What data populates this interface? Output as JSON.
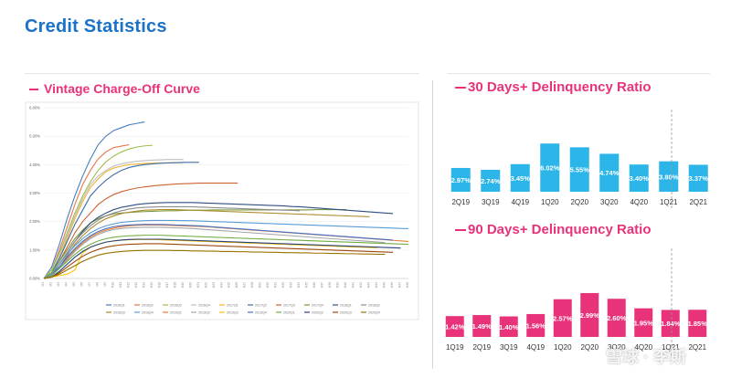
{
  "page": {
    "title": "Credit Statistics"
  },
  "sections": {
    "vintage": "Vintage Charge-Off Curve",
    "dq30": "30 Days+ Delinquency Ratio",
    "dq90": "90 Days+ Delinquency Ratio"
  },
  "watermark": "雪球 · 李斯",
  "colors": {
    "title": "#1a73c8",
    "accent": "#e8327a",
    "bar30": "#2bb5e8",
    "bar90": "#e8327a"
  },
  "chart_data": [
    {
      "id": "vintage",
      "type": "line",
      "title": "Vintage Charge-Off Curve",
      "yticks": [
        "0.00%",
        "1.00%",
        "2.00%",
        "3.00%",
        "4.00%",
        "5.00%",
        "6.00%"
      ],
      "ylim": [
        0,
        6
      ],
      "num_periods": 48,
      "series": [
        {
          "name": "2016Q1",
          "color": "#4a7fc1",
          "values": [
            0,
            0.4,
            1.2,
            2.1,
            2.9,
            3.6,
            4.2,
            4.7,
            5.0,
            5.2,
            5.3,
            5.4,
            5.45,
            5.5
          ]
        },
        {
          "name": "2016Q2",
          "color": "#e8734a",
          "values": [
            0,
            0.3,
            1.0,
            1.8,
            2.6,
            3.3,
            3.8,
            4.2,
            4.45,
            4.6,
            4.65,
            4.7
          ]
        },
        {
          "name": "2016Q3",
          "color": "#9fbf4f",
          "values": [
            0,
            0.3,
            0.9,
            1.6,
            2.3,
            2.9,
            3.4,
            3.8,
            4.1,
            4.3,
            4.45,
            4.55,
            4.62,
            4.66,
            4.68
          ]
        },
        {
          "name": "2016Q4",
          "color": "#bfbfbf",
          "values": [
            0,
            0.2,
            0.8,
            1.5,
            2.2,
            2.8,
            3.3,
            3.6,
            3.8,
            3.95,
            4.03,
            4.08,
            4.12,
            4.14,
            4.16,
            4.17,
            4.18,
            4.18,
            4.18
          ]
        },
        {
          "name": "2017Q1",
          "color": "#f2b233",
          "values": [
            0,
            0.2,
            0.7,
            1.4,
            2.1,
            2.7,
            3.2,
            3.5,
            3.75,
            3.88,
            3.95,
            4.0,
            4.02,
            4.04,
            4.05,
            4.06,
            4.06,
            4.07,
            4.07
          ]
        },
        {
          "name": "2017Q2",
          "color": "#3d6fa8",
          "values": [
            0,
            0.2,
            0.7,
            1.3,
            1.9,
            2.4,
            2.9,
            3.2,
            3.45,
            3.65,
            3.8,
            3.9,
            3.96,
            4.0,
            4.03,
            4.05,
            4.06,
            4.07,
            4.08,
            4.08,
            4.08
          ]
        },
        {
          "name": "2017Q3",
          "color": "#c9622e",
          "values": [
            0,
            0.2,
            0.6,
            1.1,
            1.6,
            2.0,
            2.3,
            2.6,
            2.8,
            2.95,
            3.05,
            3.12,
            3.18,
            3.22,
            3.25,
            3.28,
            3.3,
            3.32,
            3.33,
            3.34,
            3.35,
            3.35,
            3.35,
            3.35,
            3.35,
            3.35
          ]
        },
        {
          "name": "2017Q4",
          "color": "#7a9a3c",
          "values": [
            0,
            0.2,
            0.6,
            1.0,
            1.4,
            1.7,
            1.95,
            2.1,
            2.2,
            2.27,
            2.3,
            2.32,
            2.34,
            2.35,
            2.36,
            2.37,
            2.38,
            2.38,
            2.39,
            2.4,
            2.4,
            2.4,
            2.41,
            2.41,
            2.41,
            2.41,
            2.41,
            2.41,
            2.41,
            2.41,
            2.41,
            2.41,
            2.41,
            2.41,
            2.41,
            2.42,
            2.42,
            2.42,
            2.42,
            2.42
          ]
        },
        {
          "name": "2018Q1",
          "color": "#2e4e7e",
          "values": [
            0,
            0.1,
            0.5,
            0.9,
            1.3,
            1.65,
            1.95,
            2.15,
            2.3,
            2.42,
            2.5,
            2.55,
            2.6,
            2.63,
            2.65,
            2.66,
            2.67,
            2.67,
            2.67,
            2.67,
            2.66,
            2.65,
            2.64,
            2.63,
            2.62,
            2.61,
            2.6,
            2.59,
            2.58,
            2.57,
            2.56,
            2.55,
            2.53,
            2.52,
            2.5,
            2.48,
            2.46,
            2.44,
            2.42,
            2.4,
            2.38,
            2.36,
            2.34,
            2.32,
            2.3,
            2.28
          ]
        },
        {
          "name": "2018Q2",
          "color": "#8c8c8c",
          "values": [
            0,
            0.15,
            0.5,
            0.9,
            1.3,
            1.6,
            1.85,
            2.05,
            2.2,
            2.3,
            2.38,
            2.44,
            2.48,
            2.5,
            2.51,
            2.52,
            2.52,
            2.52,
            2.52,
            2.52,
            2.51,
            2.5,
            2.49,
            2.48,
            2.47,
            2.46,
            2.45,
            2.44,
            2.43,
            2.42,
            2.41,
            2.4,
            2.39,
            2.38
          ]
        },
        {
          "name": "2018Q3",
          "color": "#b08a2a",
          "values": [
            0,
            0.1,
            0.4,
            0.8,
            1.2,
            1.5,
            1.75,
            1.95,
            2.1,
            2.2,
            2.28,
            2.33,
            2.37,
            2.4,
            2.41,
            2.42,
            2.42,
            2.42,
            2.41,
            2.4,
            2.39,
            2.38,
            2.37,
            2.36,
            2.35,
            2.34,
            2.33,
            2.32,
            2.31,
            2.3,
            2.29,
            2.28,
            2.27,
            2.26,
            2.25,
            2.24,
            2.23,
            2.22,
            2.21,
            2.2,
            2.19,
            2.18,
            2.17
          ]
        },
        {
          "name": "2018Q4",
          "color": "#5a9bd5",
          "values": [
            0,
            0.15,
            0.5,
            0.85,
            1.15,
            1.4,
            1.6,
            1.75,
            1.85,
            1.92,
            1.97,
            2.0,
            2.02,
            2.03,
            2.04,
            2.04,
            2.04,
            2.04,
            2.03,
            2.03,
            2.02,
            2.01,
            2.0,
            1.99,
            1.98,
            1.97,
            1.96,
            1.95,
            1.94,
            1.93,
            1.92,
            1.91,
            1.9,
            1.89,
            1.88,
            1.87,
            1.86,
            1.85,
            1.84,
            1.83,
            1.82,
            1.81,
            1.8,
            1.79,
            1.78,
            1.77,
            1.76,
            1.75
          ]
        },
        {
          "name": "2019Q1",
          "color": "#ed7d31",
          "values": [
            0,
            0.1,
            0.4,
            0.7,
            1.0,
            1.25,
            1.45,
            1.6,
            1.7,
            1.77,
            1.82,
            1.85,
            1.87,
            1.88,
            1.88,
            1.88,
            1.87,
            1.86,
            1.85,
            1.84,
            1.83,
            1.82,
            1.8,
            1.78,
            1.76,
            1.74,
            1.72,
            1.7,
            1.68,
            1.66,
            1.64,
            1.62,
            1.6,
            1.58,
            1.56,
            1.54,
            1.52,
            1.5,
            1.48,
            1.46,
            1.44,
            1.42,
            1.4,
            1.38,
            1.36,
            1.34,
            1.32,
            1.3
          ]
        },
        {
          "name": "2019Q2",
          "color": "#a5a5a5",
          "values": [
            0,
            0.1,
            0.35,
            0.65,
            0.95,
            1.2,
            1.4,
            1.55,
            1.65,
            1.72,
            1.76,
            1.78,
            1.79,
            1.8,
            1.8,
            1.8,
            1.79,
            1.78,
            1.77,
            1.76,
            1.74,
            1.72,
            1.7,
            1.68,
            1.66,
            1.64,
            1.62,
            1.6,
            1.58,
            1.56,
            1.54,
            1.52,
            1.5,
            1.48,
            1.46,
            1.44,
            1.42,
            1.4,
            1.38,
            1.36,
            1.34,
            1.32,
            1.3,
            1.28,
            1.26
          ]
        },
        {
          "name": "2019Q3",
          "color": "#ffc000",
          "values": [
            0,
            0.05,
            0.1,
            0.15,
            0.3,
            0.9,
            1.1,
            1.2,
            1.28,
            1.32,
            1.35,
            1.36,
            1.37,
            1.37,
            1.37,
            1.36,
            1.35,
            1.34,
            1.33,
            1.32,
            1.31,
            1.3,
            1.29,
            1.28,
            1.27,
            1.26,
            1.25,
            1.24,
            1.23,
            1.22,
            1.21,
            1.2,
            1.19,
            1.18,
            1.17,
            1.16,
            1.15,
            1.14,
            1.13,
            1.12,
            1.11,
            1.1,
            1.09,
            1.08
          ]
        },
        {
          "name": "2019Q4",
          "color": "#4472c4",
          "values": [
            0,
            0.1,
            0.4,
            0.75,
            1.05,
            1.3,
            1.5,
            1.65,
            1.75,
            1.82,
            1.86,
            1.88,
            1.89,
            1.9,
            1.9,
            1.9,
            1.89,
            1.88,
            1.87,
            1.86,
            1.85,
            1.83,
            1.81,
            1.79,
            1.77,
            1.75,
            1.73,
            1.71,
            1.69,
            1.67,
            1.65,
            1.63,
            1.61,
            1.59,
            1.57,
            1.55,
            1.53,
            1.51,
            1.49,
            1.47,
            1.45,
            1.43,
            1.41,
            1.39,
            1.37,
            1.35
          ]
        },
        {
          "name": "2020Q1",
          "color": "#70ad47",
          "values": [
            0,
            0.1,
            0.35,
            0.6,
            0.85,
            1.05,
            1.2,
            1.32,
            1.4,
            1.45,
            1.48,
            1.5,
            1.51,
            1.52,
            1.52,
            1.52,
            1.51,
            1.5,
            1.49,
            1.48,
            1.47,
            1.46,
            1.45,
            1.44,
            1.43,
            1.42,
            1.41,
            1.4,
            1.39,
            1.38,
            1.37,
            1.36,
            1.35,
            1.34,
            1.33,
            1.32,
            1.31,
            1.3,
            1.29,
            1.28,
            1.27,
            1.26,
            1.25,
            1.24,
            1.23,
            1.22,
            1.21,
            1.2
          ]
        },
        {
          "name": "2020Q2",
          "color": "#264478",
          "values": [
            0,
            0.05,
            0.25,
            0.5,
            0.75,
            0.95,
            1.1,
            1.2,
            1.28,
            1.32,
            1.35,
            1.37,
            1.38,
            1.38,
            1.38,
            1.38,
            1.37,
            1.36,
            1.35,
            1.34,
            1.33,
            1.32,
            1.31,
            1.3,
            1.29,
            1.28,
            1.27,
            1.26,
            1.25,
            1.24,
            1.23,
            1.22,
            1.21,
            1.2,
            1.19,
            1.18,
            1.17,
            1.16,
            1.15,
            1.14,
            1.13,
            1.12,
            1.11,
            1.1,
            1.09,
            1.08,
            1.07
          ]
        },
        {
          "name": "2020Q3",
          "color": "#9e480e",
          "values": [
            0,
            0.05,
            0.2,
            0.4,
            0.6,
            0.78,
            0.92,
            1.02,
            1.1,
            1.15,
            1.18,
            1.2,
            1.21,
            1.22,
            1.22,
            1.22,
            1.21,
            1.2,
            1.19,
            1.18,
            1.17,
            1.16,
            1.15,
            1.14,
            1.13,
            1.12,
            1.11,
            1.1,
            1.09,
            1.08,
            1.07,
            1.06,
            1.05,
            1.04,
            1.03,
            1.02,
            1.01,
            1.0,
            0.99,
            0.98,
            0.97,
            0.96,
            0.95,
            0.94,
            0.93,
            0.92
          ]
        },
        {
          "name": "2020Q4",
          "color": "#997300",
          "values": [
            0,
            0.05,
            0.15,
            0.3,
            0.45,
            0.6,
            0.72,
            0.82,
            0.88,
            0.92,
            0.95,
            0.97,
            0.98,
            0.99,
            0.99,
            0.99,
            0.99,
            0.98,
            0.98,
            0.97,
            0.97,
            0.96,
            0.96,
            0.95,
            0.95,
            0.94,
            0.94,
            0.93,
            0.93,
            0.92,
            0.92,
            0.91,
            0.91,
            0.9,
            0.9,
            0.89,
            0.89,
            0.88,
            0.88,
            0.87,
            0.87,
            0.86,
            0.86,
            0.85,
            0.85
          ]
        }
      ]
    },
    {
      "id": "dq30",
      "type": "bar",
      "title": "30 Days+ Delinquency Ratio",
      "categories": [
        "2Q19",
        "3Q19",
        "4Q19",
        "1Q20",
        "2Q20",
        "3Q20",
        "4Q20",
        "1Q21",
        "2Q21"
      ],
      "values": [
        2.97,
        2.74,
        3.45,
        6.02,
        5.55,
        4.74,
        3.4,
        3.8,
        3.37
      ],
      "labels": [
        "2.97%",
        "2.74%",
        "3.45%",
        "6.02%",
        "5.55%",
        "4.74%",
        "3.40%",
        "3.80%",
        "3.37%"
      ],
      "ylim": [
        0,
        6.5
      ]
    },
    {
      "id": "dq90",
      "type": "bar",
      "title": "90 Days+ Delinquency Ratio",
      "categories": [
        "1Q19",
        "2Q19",
        "3Q19",
        "4Q19",
        "1Q20",
        "2Q20",
        "3Q20",
        "4Q20",
        "1Q21",
        "2Q21"
      ],
      "values": [
        1.42,
        1.49,
        1.4,
        1.56,
        2.57,
        2.99,
        2.6,
        1.95,
        1.84,
        1.85
      ],
      "labels": [
        "1.42%",
        "1.49%",
        "1.40%",
        "1.56%",
        "2.57%",
        "2.99%",
        "2.60%",
        "1.95%",
        "1.84%",
        "1.85%"
      ],
      "ylim": [
        0,
        3.3
      ]
    }
  ]
}
